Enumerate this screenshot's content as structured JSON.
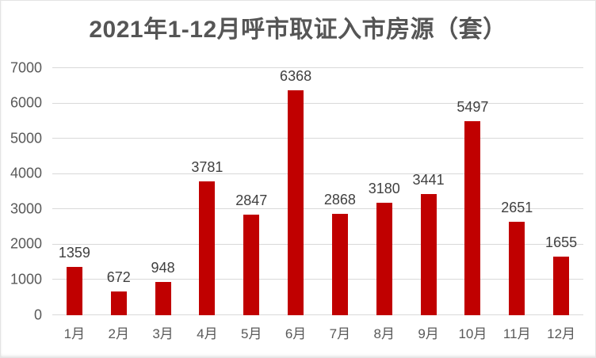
{
  "chart_data": {
    "type": "bar",
    "title": "2021年1-12月呼市取证入市房源（套）",
    "categories": [
      "1月",
      "2月",
      "3月",
      "4月",
      "5月",
      "6月",
      "7月",
      "8月",
      "9月",
      "10月",
      "11月",
      "12月"
    ],
    "values": [
      1359,
      672,
      948,
      3781,
      2847,
      6368,
      2868,
      3180,
      3441,
      5497,
      2651,
      1655
    ],
    "xlabel": "",
    "ylabel": "",
    "ylim": [
      0,
      7000
    ],
    "ytick_step": 1000,
    "grid": true,
    "legend": "none",
    "colors": {
      "bar": "#c00000",
      "title": "#555555",
      "axis_labels": "#595959",
      "value_labels": "#404040",
      "gridlines": "#d9d9d9",
      "background": "#ffffff"
    }
  }
}
